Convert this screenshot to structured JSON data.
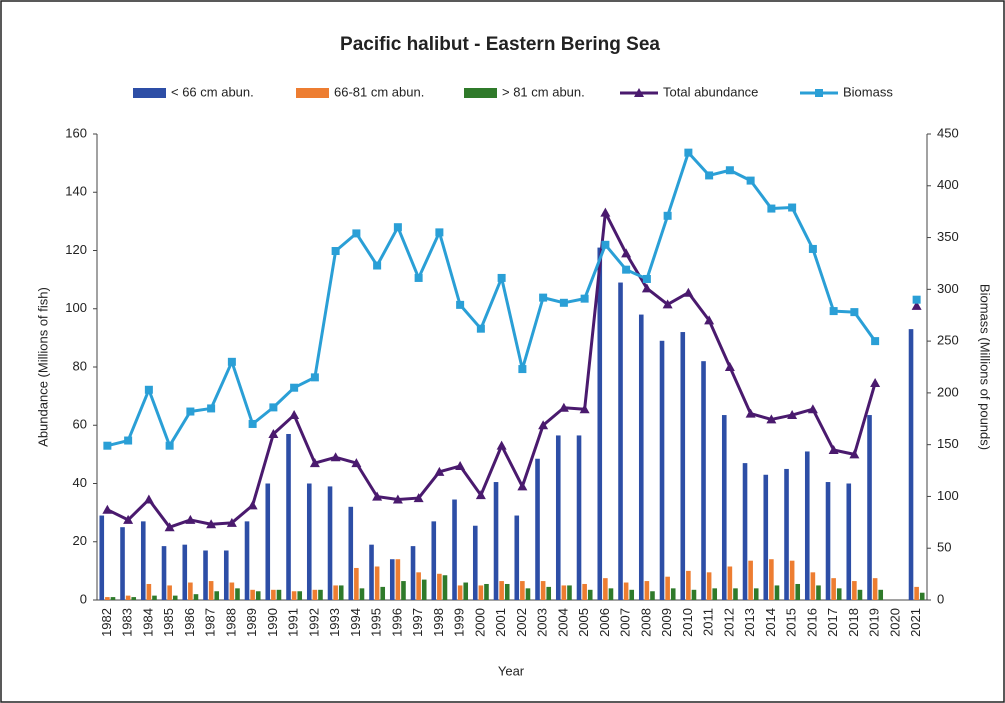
{
  "chart_data": {
    "type": "bar",
    "title": "Pacific halibut - Eastern Bering Sea",
    "x_label": "Year",
    "y_label": "Abundance (Millions of fish)",
    "y2_label": "Biomass (Millions of pounds)",
    "categories": [
      "1982",
      "1983",
      "1984",
      "1985",
      "1986",
      "1987",
      "1988",
      "1989",
      "1990",
      "1991",
      "1992",
      "1993",
      "1994",
      "1995",
      "1996",
      "1997",
      "1998",
      "1999",
      "2000",
      "2001",
      "2002",
      "2003",
      "2004",
      "2005",
      "2006",
      "2007",
      "2008",
      "2009",
      "2010",
      "2011",
      "2012",
      "2013",
      "2014",
      "2015",
      "2016",
      "2017",
      "2018",
      "2019",
      "2020",
      "2021"
    ],
    "series": [
      {
        "name": "< 66 cm abun.",
        "type": "bar",
        "color": "#2d4ea6",
        "values": [
          29,
          25,
          27,
          18.5,
          19,
          17,
          17,
          27,
          40,
          57,
          40,
          39,
          32,
          19,
          14,
          18.5,
          27,
          34.5,
          25.5,
          40.5,
          29,
          48.5,
          56.5,
          56.5,
          121,
          109,
          98,
          89,
          92,
          82,
          63.5,
          47,
          43,
          45,
          51,
          40.5,
          40,
          63.5,
          null,
          93
        ]
      },
      {
        "name": "66-81 cm abun.",
        "type": "bar",
        "color": "#ed7d31",
        "values": [
          1,
          1.5,
          5.5,
          5,
          6,
          6.5,
          6,
          3.5,
          3.5,
          3,
          3.5,
          5,
          11,
          11.5,
          14,
          9.5,
          9,
          5,
          5,
          6.5,
          6.5,
          6.5,
          5,
          5.5,
          7.5,
          6,
          6.5,
          8,
          10,
          9.5,
          11.5,
          13.5,
          14,
          13.5,
          9.5,
          7.5,
          6.5,
          7.5,
          null,
          4.5
        ]
      },
      {
        "name": "> 81 cm abun.",
        "type": "bar",
        "color": "#2f7a2a",
        "values": [
          1,
          1,
          1.5,
          1.5,
          2,
          3,
          4,
          3,
          3.5,
          3,
          3.5,
          5,
          4,
          4.5,
          6.5,
          7,
          8.5,
          6,
          5.5,
          5.5,
          4,
          4.5,
          5,
          3.5,
          4,
          3.5,
          3,
          4,
          3.5,
          4,
          4,
          4,
          5,
          5.5,
          5,
          4,
          3.5,
          3.5,
          null,
          2.5
        ]
      },
      {
        "name": "Total abundance",
        "type": "line",
        "marker": "triangle",
        "color": "#4a1a6e",
        "values": [
          31,
          27.5,
          34.5,
          25,
          27.5,
          26,
          26.5,
          32.5,
          57,
          63.5,
          47,
          49,
          47,
          35.5,
          34.5,
          35,
          44,
          46,
          36,
          53,
          39,
          60,
          66,
          65.5,
          133,
          119,
          107,
          101.5,
          105.5,
          96,
          80,
          64,
          62,
          63.5,
          65.5,
          51.5,
          50,
          74.5,
          null,
          101
        ]
      },
      {
        "name": "Biomass",
        "type": "line",
        "marker": "square",
        "color": "#2a9fd6",
        "axis": "y2",
        "values": [
          149,
          154,
          203,
          149,
          182,
          185,
          230,
          170,
          186,
          205,
          215,
          337,
          354,
          323,
          360,
          311,
          355,
          285,
          262,
          311,
          223,
          292,
          287,
          291,
          343,
          319,
          310,
          371,
          432,
          410,
          415,
          405,
          378,
          379,
          339,
          279,
          278,
          250,
          null,
          290
        ]
      }
    ],
    "ylim": [
      0,
      160
    ],
    "yticks": [
      0,
      20,
      40,
      60,
      80,
      100,
      120,
      140,
      160
    ],
    "y2lim": [
      0,
      450
    ],
    "y2ticks": [
      0,
      50,
      100,
      150,
      200,
      250,
      300,
      350,
      400,
      450
    ],
    "grid": false,
    "legend": "top"
  }
}
